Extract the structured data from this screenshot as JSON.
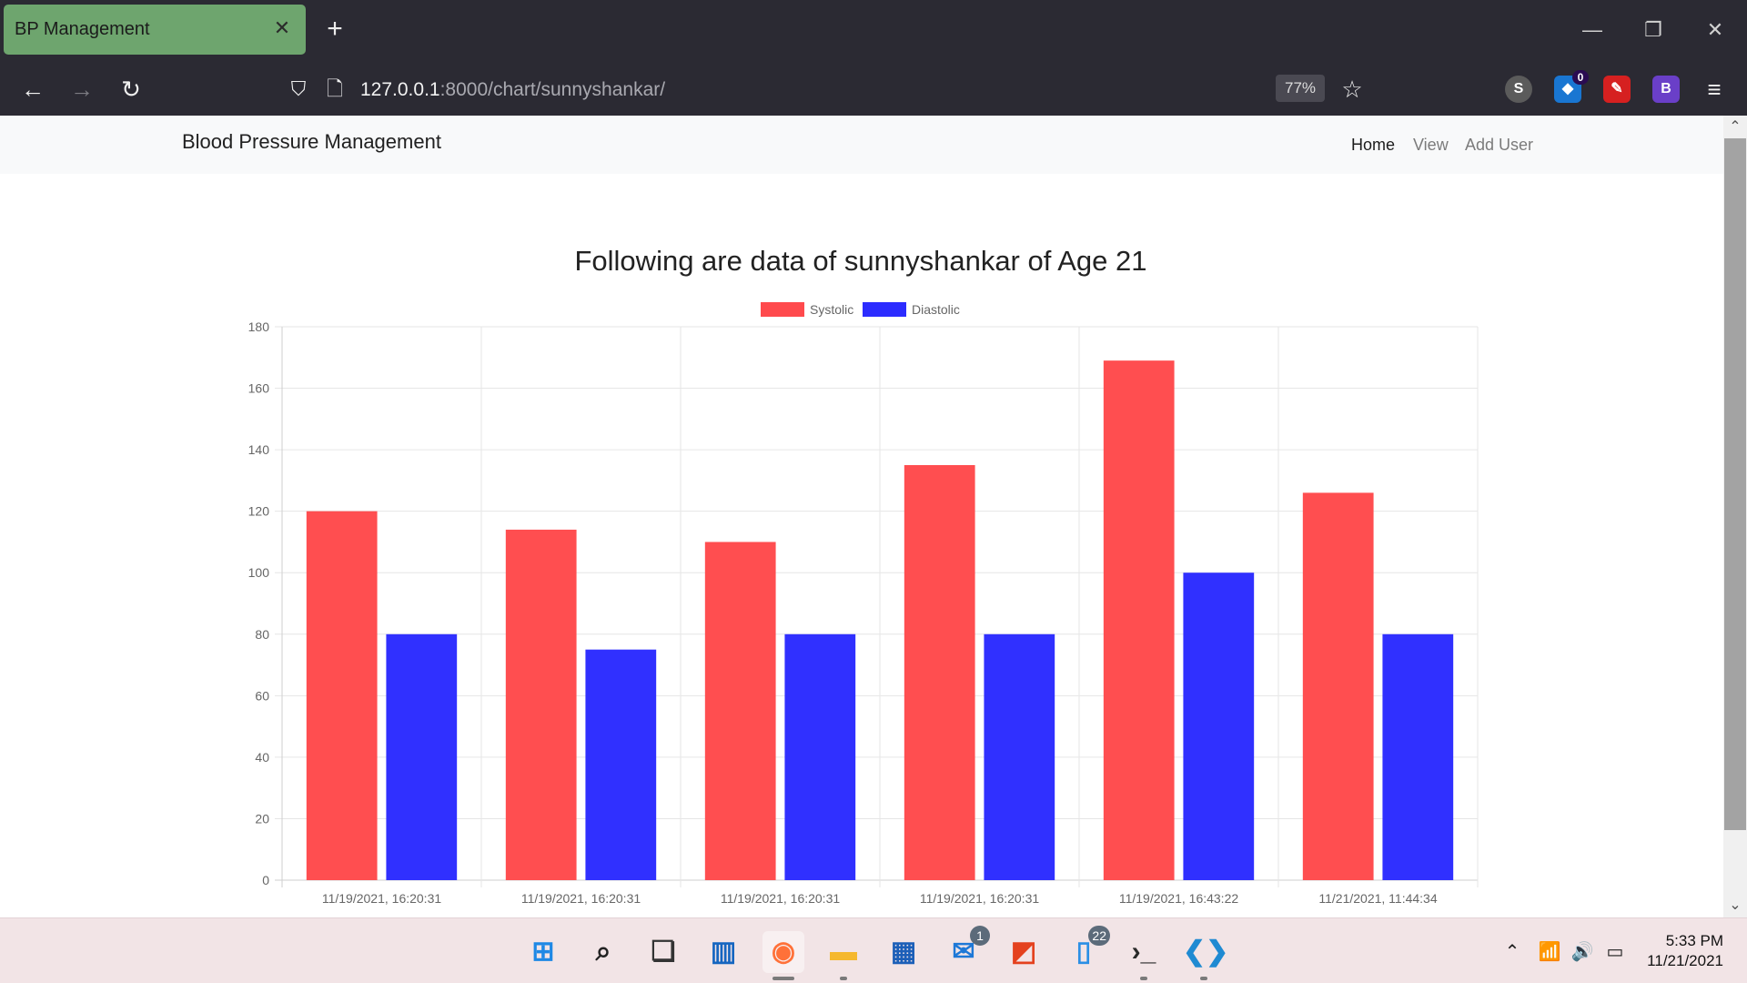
{
  "browser": {
    "tab_title": "BP Management",
    "url_host": "127.0.0.1",
    "url_rest": ":8000/chart/sunnyshankar/",
    "zoom": "77%",
    "extensions": [
      {
        "name": "s-extension-icon",
        "glyph": "S",
        "color": "#5b5b5b"
      },
      {
        "name": "ghostery-icon",
        "glyph": "◆",
        "color": "#1976d2",
        "badge": "0"
      },
      {
        "name": "magic-wand-extension-icon",
        "glyph": "✎",
        "color": "#d62020"
      },
      {
        "name": "adblock-extension-icon",
        "glyph": "B",
        "color": "#6a3fc8"
      }
    ]
  },
  "site": {
    "brand": "Blood Pressure Management",
    "nav": {
      "home": "Home",
      "view": "View",
      "add_user": "Add User"
    }
  },
  "chart_data": {
    "type": "bar",
    "title": "Following are data of sunnyshankar of Age 21",
    "categories": [
      "11/19/2021, 16:20:31",
      "11/19/2021, 16:20:31",
      "11/19/2021, 16:20:31",
      "11/19/2021, 16:20:31",
      "11/19/2021, 16:43:22",
      "11/21/2021, 11:44:34"
    ],
    "series": [
      {
        "name": "Systolic",
        "values": [
          120,
          114,
          110,
          135,
          169,
          126
        ],
        "color": "#ff4a4d"
      },
      {
        "name": "Diastolic",
        "values": [
          80,
          75,
          80,
          80,
          100,
          80
        ],
        "color": "#2c2cff"
      }
    ],
    "ylim": [
      0,
      180
    ],
    "yticks": [
      0,
      20,
      40,
      60,
      80,
      100,
      120,
      140,
      160,
      180
    ],
    "grid": true,
    "legend": "top-center"
  },
  "taskbar": {
    "apps": [
      {
        "name": "windows-start-icon",
        "color": "#1e88e5"
      },
      {
        "name": "search-icon",
        "color": "#222222"
      },
      {
        "name": "task-view-icon",
        "color": "#333333"
      },
      {
        "name": "widgets-icon",
        "color": "#1565c0"
      },
      {
        "name": "firefox-icon",
        "color": "#ff7139",
        "active": true
      },
      {
        "name": "file-explorer-icon",
        "color": "#f5b82e",
        "running": true
      },
      {
        "name": "microsoft-store-icon",
        "color": "#1c5fb8"
      },
      {
        "name": "mail-icon",
        "color": "#1e78d7",
        "badge": "1"
      },
      {
        "name": "office-icon",
        "color": "#e4411e"
      },
      {
        "name": "phone-link-icon",
        "color": "#2b8fe5",
        "badge": "22"
      },
      {
        "name": "terminal-icon",
        "color": "#2a2a2a",
        "running": true
      },
      {
        "name": "vscode-icon",
        "color": "#1f8ad2",
        "running": true
      }
    ],
    "time": "5:33 PM",
    "date": "11/21/2021"
  }
}
